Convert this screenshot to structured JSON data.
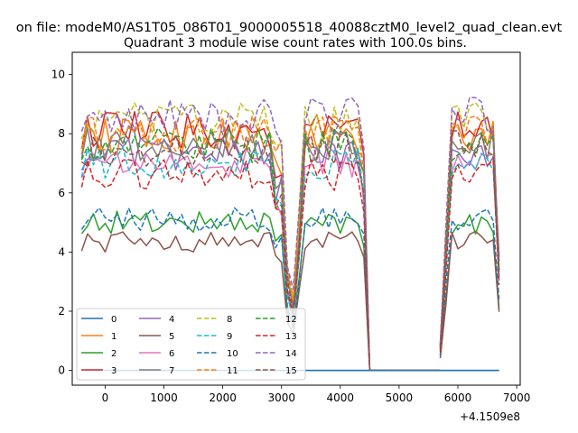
{
  "figure": {
    "suptitle": "on file: modeM0/AS1T05_086T01_9000005518_40088cztM0_level2_quad_clean.evt",
    "title": "Quadrant 3 module wise count rates with 100.0s bins.",
    "offset_text": "+4.1509e8"
  },
  "chart_data": {
    "type": "line",
    "title": "Quadrant 3 module wise count rates with 100.0s bins.",
    "xlabel": "",
    "ylabel": "",
    "x_offset": 415090000,
    "xlim": [
      -560,
      7060
    ],
    "ylim": [
      -0.5,
      10.75
    ],
    "xticks": [
      0,
      1000,
      2000,
      3000,
      4000,
      5000,
      6000,
      7000
    ],
    "xtick_labels": [
      "0",
      "1000",
      "2000",
      "3000",
      "4000",
      "5000",
      "6000",
      "7000"
    ],
    "yticks": [
      0,
      2,
      4,
      6,
      8,
      10
    ],
    "ytick_labels": [
      "0",
      "2",
      "4",
      "6",
      "8",
      "10"
    ],
    "grid": false,
    "legend": {
      "position": "lower-left",
      "columns": 4
    },
    "segments": [
      {
        "x_start": -400,
        "x_end": 4500,
        "step": 100
      },
      {
        "x_start": 5700,
        "x_end": 6700,
        "step": 100
      }
    ],
    "series": [
      {
        "name": "0",
        "color": "#1f77b4",
        "dash": "solid",
        "mean": 0.0
      },
      {
        "name": "1",
        "color": "#ff7f0e",
        "dash": "solid",
        "mean": 7.9
      },
      {
        "name": "2",
        "color": "#2ca02c",
        "dash": "solid",
        "mean": 5.0
      },
      {
        "name": "3",
        "color": "#d62728",
        "dash": "solid",
        "mean": 8.1
      },
      {
        "name": "4",
        "color": "#9467bd",
        "dash": "solid",
        "mean": 7.3
      },
      {
        "name": "5",
        "color": "#8c564b",
        "dash": "solid",
        "mean": 4.35
      },
      {
        "name": "6",
        "color": "#e377c2",
        "dash": "solid",
        "mean": 7.0
      },
      {
        "name": "7",
        "color": "#7f7f7f",
        "dash": "solid",
        "mean": 7.7
      },
      {
        "name": "8",
        "color": "#bcbd22",
        "dash": "dashed",
        "mean": 8.4
      },
      {
        "name": "9",
        "color": "#17becf",
        "dash": "dashed",
        "mean": 7.0
      },
      {
        "name": "10",
        "color": "#1f77b4",
        "dash": "dashed",
        "mean": 5.1
      },
      {
        "name": "11",
        "color": "#ff7f0e",
        "dash": "dashed",
        "mean": 8.0
      },
      {
        "name": "12",
        "color": "#2ca02c",
        "dash": "dashed",
        "mean": 7.6
      },
      {
        "name": "13",
        "color": "#d62728",
        "dash": "dashed",
        "mean": 6.6
      },
      {
        "name": "14",
        "color": "#9467bd",
        "dash": "dashed",
        "mean": 8.6
      },
      {
        "name": "15",
        "color": "#8c564b",
        "dash": "dashed",
        "mean": 7.5
      }
    ]
  }
}
